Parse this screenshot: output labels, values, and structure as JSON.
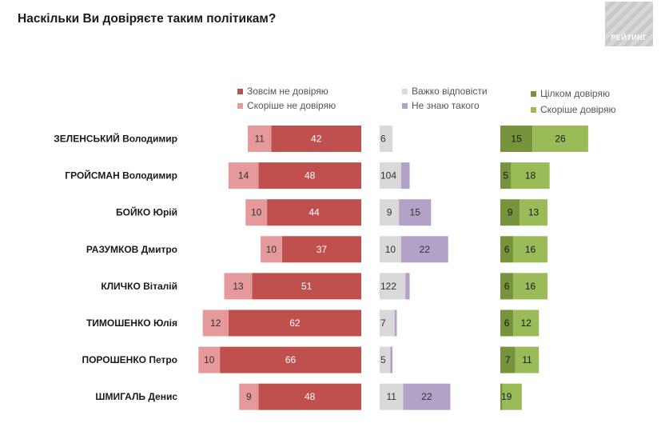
{
  "title": "Наскільки Ви довіряєте таким політикам?",
  "logo_text": "РЕЙТИНГ",
  "legend": [
    {
      "key": "full_distrust",
      "label": "Зовсім не довіряю",
      "color": "#c0504d"
    },
    {
      "key": "rather_distrust",
      "label": "Скоріше не довіряю",
      "color": "#e6999b"
    },
    {
      "key": "hard_to_say",
      "label": "Важко відповісти",
      "color": "#d9d9d9"
    },
    {
      "key": "dont_know",
      "label": "Не знаю такого",
      "color": "#b3a2c7"
    },
    {
      "key": "full_trust",
      "label": "Цілком довіряю",
      "color": "#77933c"
    },
    {
      "key": "rather_trust",
      "label": "Скоріше довіряю",
      "color": "#9bbb59"
    }
  ],
  "chart_data": {
    "type": "bar",
    "title": "Наскільки Ви довіряєте таким політикам?",
    "categories": [
      "ЗЕЛЕНСЬКИЙ Володимир",
      "ГРОЙСМАН Володимир",
      "БОЙКО Юрій",
      "РАЗУМКОВ Дмитро",
      "КЛИЧКО Віталій",
      "ТИМОШЕНКО Юлія",
      "ПОРОШЕНКО Петро",
      "ШМИГАЛЬ Денис"
    ],
    "series": [
      {
        "name": "Зовсім не довіряю",
        "values": [
          42,
          48,
          44,
          37,
          51,
          62,
          66,
          48
        ]
      },
      {
        "name": "Скоріше не довіряю",
        "values": [
          11,
          14,
          10,
          10,
          13,
          12,
          10,
          9
        ]
      },
      {
        "name": "Важко відповісти",
        "values": [
          6,
          10,
          9,
          10,
          12,
          7,
          5,
          11
        ]
      },
      {
        "name": "Не знаю такого",
        "values": [
          0,
          4,
          15,
          22,
          2,
          1,
          1,
          22
        ]
      },
      {
        "name": "Цілком довіряю",
        "values": [
          15,
          5,
          9,
          6,
          6,
          6,
          7,
          1
        ]
      },
      {
        "name": "Скоріше довіряю",
        "values": [
          26,
          18,
          13,
          16,
          16,
          12,
          11,
          9
        ]
      }
    ],
    "value_labels": {
      "Не знаю такого": [
        "",
        "4",
        "15",
        "22",
        "2",
        "",
        "",
        "22"
      ],
      "Важко відповісти": [
        "6",
        "10",
        "9",
        "10",
        "12",
        "7",
        "5",
        "11"
      ]
    },
    "legend_position": "top",
    "grid": false
  }
}
